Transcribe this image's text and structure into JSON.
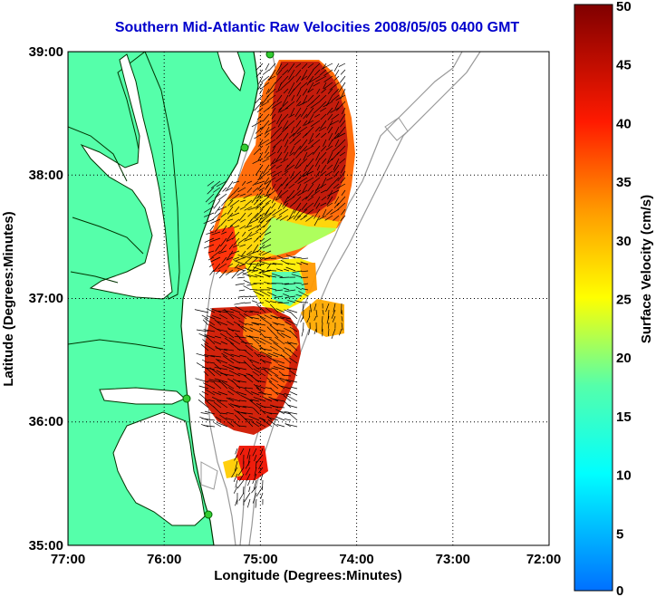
{
  "title": "Southern Mid-Atlantic Raw Velocities 2008/05/05 0400 GMT",
  "x_axis": {
    "label": "Longitude (Degrees:Minutes)",
    "ticks": [
      "77:00",
      "76:00",
      "75:00",
      "74:00",
      "73:00",
      "72:00"
    ]
  },
  "y_axis": {
    "label": "Latitude (Degrees:Minutes)",
    "ticks": [
      "39:00",
      "38:00",
      "37:00",
      "36:00",
      "35:00"
    ]
  },
  "colorbar": {
    "label": "Surface Velocity (cm/s)",
    "ticks": [
      "50",
      "45",
      "40",
      "35",
      "30",
      "25",
      "20",
      "15",
      "10",
      "5",
      "0"
    ],
    "min": 0,
    "max": 50,
    "colors": [
      "#0000ff",
      "#00ffff",
      "#55ffaa",
      "#ffff00",
      "#ff8800",
      "#ff0000",
      "#800000"
    ]
  },
  "colors": {
    "land": "#55ffaa",
    "coast": "#003300",
    "bathymetry": "#999999",
    "grid": "#000000",
    "stations": "#33cc33"
  },
  "grid": "dotted"
}
